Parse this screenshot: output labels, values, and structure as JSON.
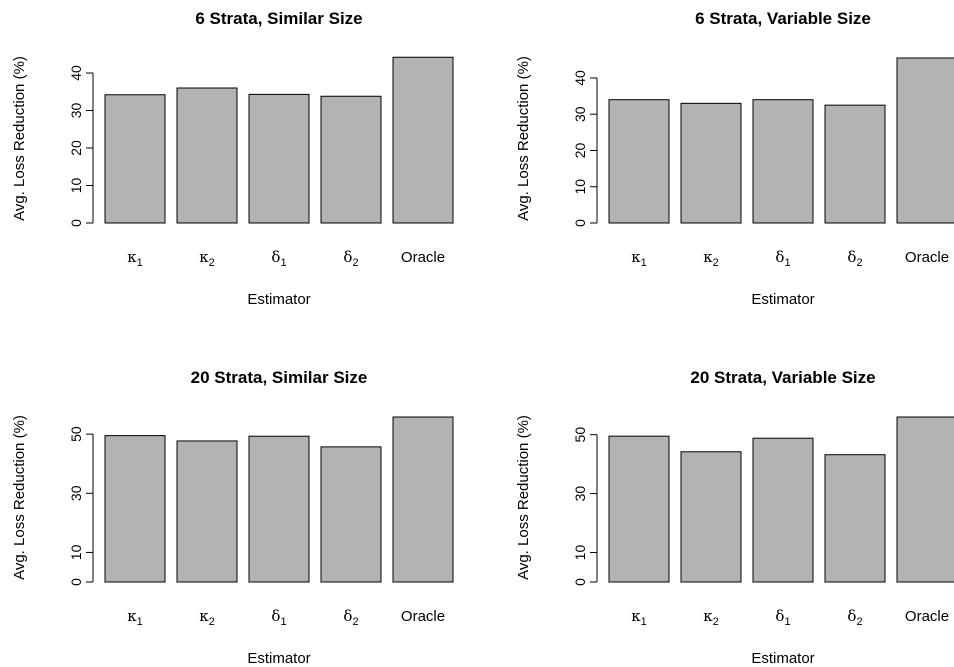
{
  "estimator_label": "Estimator",
  "ylabel": "Avg. Loss Reduction (%)",
  "chart_data": [
    {
      "type": "bar",
      "title": "6 Strata, Similar Size",
      "xlabel": "Estimator",
      "ylabel": "Avg. Loss Reduction (%)",
      "categories": [
        "κ1",
        "κ2",
        "δ1",
        "δ2",
        "Oracle"
      ],
      "values": [
        34.2,
        36.0,
        34.3,
        33.8,
        44.2
      ],
      "ylim": [
        0,
        44
      ],
      "yticks": [
        0,
        10,
        20,
        30,
        40
      ]
    },
    {
      "type": "bar",
      "title": "6 Strata, Variable Size",
      "xlabel": "Estimator",
      "ylabel": "Avg. Loss Reduction (%)",
      "categories": [
        "κ1",
        "κ2",
        "δ1",
        "δ2",
        "Oracle"
      ],
      "values": [
        34.0,
        33.0,
        34.0,
        32.5,
        45.5
      ],
      "ylim": [
        0,
        45.5
      ],
      "yticks": [
        0,
        10,
        20,
        30,
        40
      ]
    },
    {
      "type": "bar",
      "title": "20 Strata, Similar Size",
      "xlabel": "Estimator",
      "ylabel": "Avg. Loss Reduction (%)",
      "categories": [
        "κ1",
        "κ2",
        "δ1",
        "δ2",
        "Oracle"
      ],
      "values": [
        49.5,
        47.7,
        49.3,
        45.7,
        55.8
      ],
      "ylim": [
        0,
        55.8
      ],
      "yticks": [
        0,
        10,
        30,
        50
      ]
    },
    {
      "type": "bar",
      "title": "20 Strata, Variable Size",
      "xlabel": "Estimator",
      "ylabel": "Avg. Loss Reduction (%)",
      "categories": [
        "κ1",
        "κ2",
        "δ1",
        "δ2",
        "Oracle"
      ],
      "values": [
        49.5,
        44.2,
        48.8,
        43.2,
        56.0
      ],
      "ylim": [
        0,
        56.0
      ],
      "yticks": [
        0,
        10,
        30,
        50
      ]
    }
  ]
}
